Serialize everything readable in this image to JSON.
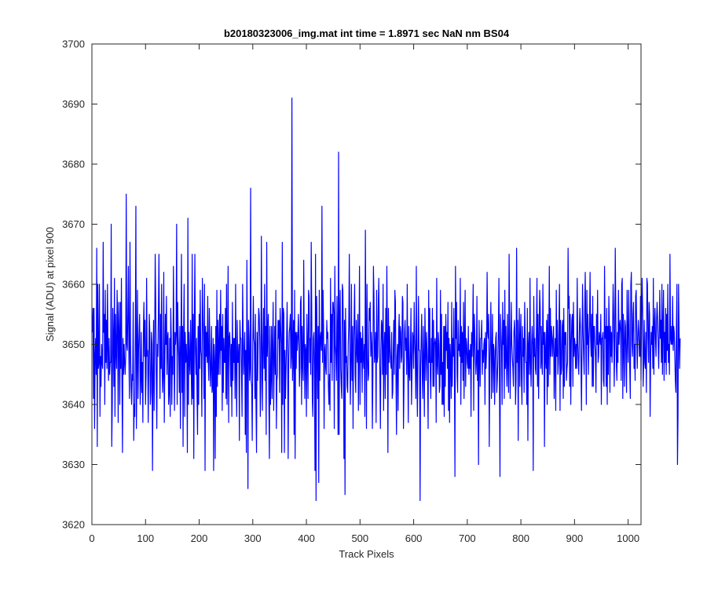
{
  "chart_data": {
    "type": "line",
    "title": "b20180323006_img.mat int time = 1.8971 sec  NaN nm BS04",
    "xlabel": "Track Pixels",
    "ylabel": "Signal (ADU) at pixel 900",
    "xlim": [
      0,
      1024
    ],
    "ylim": [
      3620,
      3700
    ],
    "xticks": [
      0,
      100,
      200,
      300,
      400,
      500,
      600,
      700,
      800,
      900,
      1000
    ],
    "yticks": [
      3620,
      3630,
      3640,
      3650,
      3660,
      3670,
      3680,
      3690,
      3700
    ],
    "xtick_labels": [
      "0",
      "100",
      "200",
      "300",
      "400",
      "500",
      "600",
      "700",
      "800",
      "900",
      "1000"
    ],
    "ytick_labels": [
      "3620",
      "3630",
      "3640",
      "3650",
      "3660",
      "3670",
      "3680",
      "3690",
      "3700"
    ],
    "grid": false,
    "line_color": "#0000ff",
    "series": [
      {
        "x_start": 1,
        "x_step": 1,
        "values": [
          3652,
          3656,
          3641,
          3656,
          3636,
          3648,
          3651,
          3645,
          3666,
          3633,
          3660,
          3646,
          3647,
          3660,
          3638,
          3648,
          3643,
          3650,
          3647,
          3646,
          3667,
          3652,
          3655,
          3640,
          3659,
          3647,
          3654,
          3646,
          3660,
          3649,
          3644,
          3651,
          3645,
          3647,
          3647,
          3670,
          3633,
          3640,
          3656,
          3651,
          3643,
          3661,
          3638,
          3655,
          3649,
          3646,
          3659,
          3653,
          3637,
          3657,
          3652,
          3640,
          3657,
          3646,
          3661,
          3644,
          3632,
          3651,
          3645,
          3650,
          3647,
          3645,
          3648,
          3675,
          3650,
          3649,
          3655,
          3663,
          3648,
          3641,
          3667,
          3650,
          3643,
          3640,
          3645,
          3644,
          3657,
          3634,
          3640,
          3638,
          3652,
          3673,
          3636,
          3647,
          3659,
          3641,
          3649,
          3652,
          3655,
          3640,
          3644,
          3652,
          3642,
          3647,
          3637,
          3652,
          3657,
          3648,
          3654,
          3640,
          3645,
          3661,
          3648,
          3649,
          3637,
          3646,
          3655,
          3652,
          3640,
          3642,
          3652,
          3650,
          3629,
          3645,
          3654,
          3639,
          3650,
          3665,
          3657,
          3645,
          3636,
          3650,
          3648,
          3655,
          3665,
          3651,
          3641,
          3655,
          3646,
          3660,
          3646,
          3642,
          3645,
          3662,
          3637,
          3647,
          3655,
          3650,
          3658,
          3645,
          3651,
          3652,
          3640,
          3642,
          3651,
          3638,
          3656,
          3651,
          3640,
          3648,
          3645,
          3663,
          3650,
          3639,
          3652,
          3650,
          3652,
          3670,
          3640,
          3657,
          3651,
          3648,
          3642,
          3653,
          3636,
          3649,
          3665,
          3642,
          3653,
          3633,
          3652,
          3660,
          3638,
          3652,
          3647,
          3650,
          3647,
          3632,
          3671,
          3640,
          3652,
          3647,
          3645,
          3654,
          3648,
          3640,
          3665,
          3641,
          3655,
          3631,
          3653,
          3665,
          3649,
          3645,
          3651,
          3642,
          3635,
          3653,
          3640,
          3655,
          3646,
          3659,
          3649,
          3648,
          3638,
          3661,
          3655,
          3651,
          3641,
          3660,
          3629,
          3653,
          3648,
          3652,
          3647,
          3658,
          3647,
          3644,
          3656,
          3649,
          3643,
          3646,
          3653,
          3642,
          3643,
          3651,
          3629,
          3650,
          3647,
          3631,
          3653,
          3638,
          3659,
          3643,
          3654,
          3645,
          3650,
          3655,
          3645,
          3659,
          3649,
          3653,
          3639,
          3655,
          3642,
          3651,
          3647,
          3647,
          3656,
          3641,
          3660,
          3640,
          3650,
          3663,
          3637,
          3651,
          3652,
          3649,
          3643,
          3650,
          3638,
          3657,
          3644,
          3651,
          3647,
          3651,
          3641,
          3660,
          3646,
          3638,
          3654,
          3647,
          3647,
          3650,
          3634,
          3654,
          3651,
          3651,
          3645,
          3638,
          3660,
          3652,
          3645,
          3648,
          3652,
          3635,
          3649,
          3632,
          3664,
          3650,
          3626,
          3654,
          3651,
          3644,
          3646,
          3676,
          3644,
          3643,
          3634,
          3650,
          3658,
          3651,
          3650,
          3641,
          3655,
          3640,
          3632,
          3652,
          3644,
          3650,
          3656,
          3655,
          3651,
          3638,
          3643,
          3668,
          3650,
          3639,
          3650,
          3656,
          3646,
          3660,
          3644,
          3653,
          3635,
          3667,
          3648,
          3652,
          3655,
          3641,
          3631,
          3653,
          3640,
          3644,
          3653,
          3641,
          3650,
          3657,
          3639,
          3647,
          3653,
          3645,
          3659,
          3636,
          3644,
          3645,
          3654,
          3651,
          3654,
          3642,
          3656,
          3653,
          3650,
          3632,
          3667,
          3640,
          3656,
          3655,
          3632,
          3649,
          3641,
          3646,
          3650,
          3657,
          3649,
          3631,
          3647,
          3652,
          3653,
          3655,
          3646,
          3648,
          3691,
          3644,
          3648,
          3654,
          3635,
          3659,
          3631,
          3652,
          3646,
          3652,
          3649,
          3651,
          3655,
          3651,
          3643,
          3646,
          3657,
          3658,
          3640,
          3653,
          3647,
          3644,
          3664,
          3650,
          3641,
          3650,
          3649,
          3638,
          3655,
          3649,
          3641,
          3659,
          3658,
          3647,
          3651,
          3645,
          3667,
          3655,
          3641,
          3638,
          3651,
          3652,
          3646,
          3629,
          3665,
          3624,
          3658,
          3650,
          3641,
          3653,
          3627,
          3659,
          3644,
          3651,
          3652,
          3649,
          3673,
          3647,
          3659,
          3653,
          3636,
          3649,
          3650,
          3646,
          3645,
          3654,
          3651,
          3652,
          3643,
          3640,
          3645,
          3639,
          3661,
          3647,
          3655,
          3644,
          3657,
          3657,
          3655,
          3636,
          3663,
          3650,
          3648,
          3644,
          3658,
          3651,
          3635,
          3682,
          3635,
          3654,
          3659,
          3646,
          3643,
          3641,
          3660,
          3659,
          3651,
          3631,
          3654,
          3625,
          3656,
          3647,
          3648,
          3643,
          3642,
          3650,
          3653,
          3665,
          3650,
          3640,
          3647,
          3660,
          3644,
          3653,
          3636,
          3650,
          3654,
          3660,
          3645,
          3642,
          3654,
          3649,
          3647,
          3655,
          3639,
          3649,
          3663,
          3640,
          3652,
          3647,
          3651,
          3642,
          3653,
          3648,
          3646,
          3650,
          3638,
          3669,
          3652,
          3636,
          3660,
          3648,
          3644,
          3645,
          3656,
          3654,
          3657,
          3648,
          3652,
          3650,
          3636,
          3645,
          3663,
          3658,
          3647,
          3649,
          3652,
          3637,
          3659,
          3647,
          3648,
          3656,
          3661,
          3651,
          3645,
          3636,
          3649,
          3654,
          3653,
          3645,
          3660,
          3639,
          3649,
          3652,
          3641,
          3656,
          3645,
          3663,
          3652,
          3632,
          3656,
          3647,
          3653,
          3649,
          3647,
          3646,
          3652,
          3641,
          3642,
          3649,
          3654,
          3645,
          3659,
          3657,
          3645,
          3635,
          3648,
          3650,
          3639,
          3652,
          3655,
          3646,
          3653,
          3652,
          3647,
          3648,
          3658,
          3657,
          3636,
          3643,
          3652,
          3654,
          3649,
          3651,
          3645,
          3660,
          3648,
          3637,
          3653,
          3645,
          3644,
          3649,
          3656,
          3640,
          3646,
          3652,
          3651,
          3646,
          3657,
          3651,
          3648,
          3641,
          3663,
          3645,
          3638,
          3649,
          3658,
          3649,
          3649,
          3624,
          3646,
          3651,
          3655,
          3645,
          3641,
          3653,
          3647,
          3638,
          3656,
          3650,
          3644,
          3652,
          3649,
          3645,
          3636,
          3659,
          3647,
          3656,
          3645,
          3641,
          3651,
          3647,
          3656,
          3643,
          3654,
          3643,
          3650,
          3651,
          3650,
          3637,
          3661,
          3647,
          3645,
          3652,
          3650,
          3642,
          3643,
          3659,
          3645,
          3655,
          3640,
          3647,
          3640,
          3653,
          3638,
          3653,
          3643,
          3655,
          3649,
          3652,
          3646,
          3657,
          3639,
          3651,
          3637,
          3650,
          3647,
          3641,
          3657,
          3643,
          3651,
          3648,
          3656,
          3646,
          3628,
          3663,
          3651,
          3657,
          3645,
          3642,
          3654,
          3649,
          3650,
          3648,
          3661,
          3640,
          3653,
          3647,
          3652,
          3644,
          3657,
          3641,
          3650,
          3659,
          3643,
          3651,
          3650,
          3647,
          3646,
          3653,
          3645,
          3649,
          3646,
          3650,
          3638,
          3652,
          3648,
          3652,
          3660,
          3639,
          3655,
          3652,
          3648,
          3645,
          3647,
          3658,
          3644,
          3649,
          3630,
          3654,
          3649,
          3643,
          3651,
          3651,
          3654,
          3645,
          3649,
          3647,
          3650,
          3651,
          3640,
          3652,
          3646,
          3649,
          3662,
          3652,
          3651,
          3655,
          3633,
          3647,
          3651,
          3657,
          3641,
          3648,
          3655,
          3642,
          3650,
          3649,
          3640,
          3647,
          3651,
          3652,
          3642,
          3644,
          3647,
          3652,
          3661,
          3644,
          3628,
          3655,
          3652,
          3649,
          3640,
          3657,
          3650,
          3654,
          3641,
          3659,
          3646,
          3653,
          3647,
          3643,
          3655,
          3647,
          3642,
          3665,
          3653,
          3641,
          3649,
          3657,
          3650,
          3648,
          3646,
          3643,
          3652,
          3654,
          3651,
          3640,
          3644,
          3666,
          3647,
          3654,
          3634,
          3650,
          3656,
          3643,
          3651,
          3655,
          3644,
          3640,
          3653,
          3648,
          3651,
          3642,
          3657,
          3651,
          3647,
          3647,
          3640,
          3656,
          3634,
          3650,
          3652,
          3645,
          3661,
          3647,
          3643,
          3650,
          3653,
          3650,
          3629,
          3658,
          3648,
          3651,
          3646,
          3645,
          3653,
          3661,
          3643,
          3655,
          3641,
          3650,
          3659,
          3656,
          3646,
          3653,
          3647,
          3645,
          3660,
          3650,
          3652,
          3633,
          3652,
          3648,
          3646,
          3654,
          3640,
          3655,
          3643,
          3650,
          3663,
          3645,
          3656,
          3648,
          3653,
          3651,
          3648,
          3651,
          3653,
          3641,
          3648,
          3651,
          3639,
          3659,
          3648,
          3654,
          3645,
          3647,
          3653,
          3660,
          3639,
          3654,
          3645,
          3646,
          3653,
          3654,
          3641,
          3656,
          3643,
          3652,
          3650,
          3652,
          3644,
          3646,
          3647,
          3666,
          3656,
          3658,
          3643,
          3655,
          3640,
          3650,
          3654,
          3655,
          3643,
          3657,
          3648,
          3651,
          3650,
          3646,
          3650,
          3646,
          3661,
          3650,
          3647,
          3645,
          3652,
          3656,
          3653,
          3647,
          3639,
          3650,
          3660,
          3652,
          3648,
          3645,
          3656,
          3662,
          3652,
          3640,
          3659,
          3650,
          3655,
          3645,
          3651,
          3653,
          3662,
          3651,
          3648,
          3655,
          3643,
          3658,
          3643,
          3653,
          3653,
          3650,
          3648,
          3642,
          3655,
          3650,
          3659,
          3647,
          3648,
          3652,
          3651,
          3650,
          3655,
          3640,
          3651,
          3651,
          3652,
          3644,
          3643,
          3663,
          3651,
          3653,
          3643,
          3656,
          3640,
          3653,
          3645,
          3658,
          3653,
          3642,
          3653,
          3648,
          3652,
          3647,
          3652,
          3660,
          3655,
          3643,
          3649,
          3666,
          3655,
          3647,
          3644,
          3652,
          3647,
          3659,
          3650,
          3653,
          3654,
          3652,
          3644,
          3660,
          3661,
          3641,
          3655,
          3650,
          3643,
          3654,
          3653,
          3647,
          3642,
          3659,
          3651,
          3647,
          3659,
          3653,
          3646,
          3641,
          3660,
          3662,
          3650,
          3648,
          3655,
          3657,
          3646,
          3650,
          3644,
          3658,
          3659,
          3652,
          3646,
          3651,
          3654,
          3652,
          3648,
          3648,
          3658,
          3644,
          3654,
          3661,
          3656,
          3643,
          3647,
          3654,
          3647,
          3646,
          3652,
          3642,
          3661,
          3660,
          3651,
          3647,
          3657,
          3655,
          3638,
          3648,
          3652,
          3650,
          3653,
          3646,
          3661,
          3645,
          3653,
          3656,
          3651,
          3648,
          3654,
          3657,
          3654,
          3650,
          3646,
          3652,
          3659,
          3651,
          3654,
          3647,
          3660,
          3645,
          3653,
          3659,
          3644,
          3652,
          3647,
          3656,
          3645,
          3655,
          3649,
          3660,
          3647,
          3650,
          3645,
          3665,
          3651,
          3650,
          3653,
          3650,
          3658,
          3649,
          3653,
          3652,
          3648,
          3644,
          3642,
          3653,
          3660,
          3630,
          3638,
          3660,
          3652,
          3646,
          3651
        ]
      }
    ]
  }
}
